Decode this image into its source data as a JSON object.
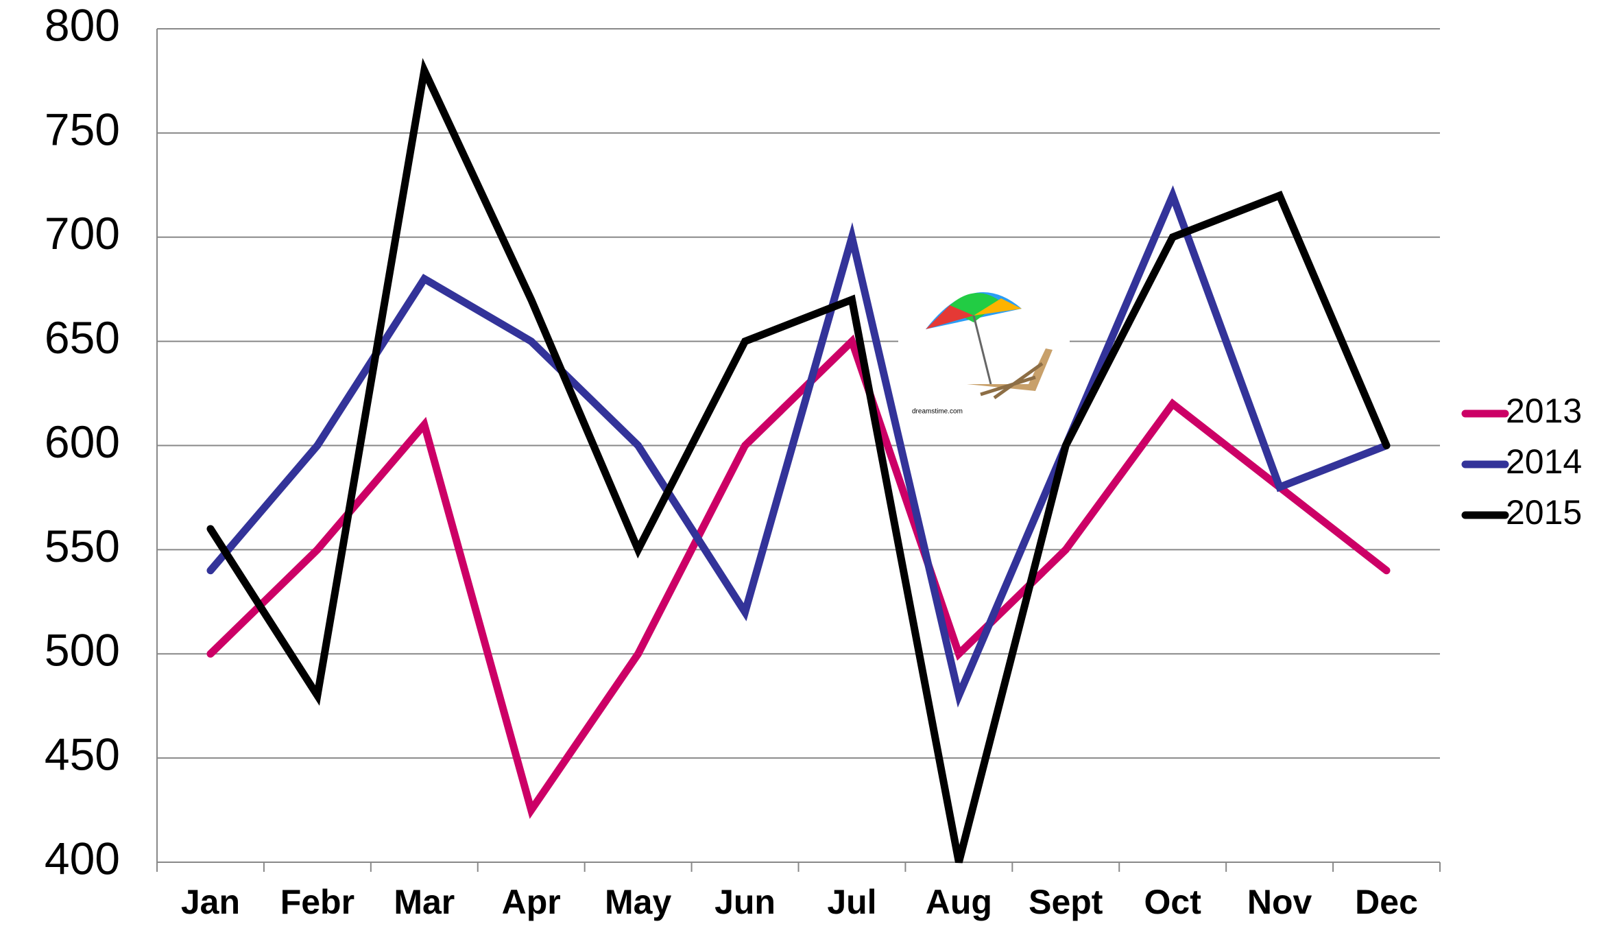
{
  "chart_data": {
    "type": "line",
    "categories": [
      "Jan",
      "Febr",
      "Mar",
      "Apr",
      "May",
      "Jun",
      "Jul",
      "Aug",
      "Sept",
      "Oct",
      "Nov",
      "Dec"
    ],
    "series": [
      {
        "name": "2013",
        "color": "#cc0066",
        "values": [
          500,
          550,
          610,
          425,
          500,
          600,
          650,
          500,
          550,
          620,
          580,
          540
        ]
      },
      {
        "name": "2014",
        "color": "#333399",
        "values": [
          540,
          600,
          680,
          650,
          600,
          520,
          700,
          480,
          600,
          720,
          580,
          600
        ]
      },
      {
        "name": "2015",
        "color": "#000000",
        "values": [
          560,
          480,
          780,
          670,
          550,
          650,
          670,
          400,
          600,
          700,
          720,
          600
        ]
      }
    ],
    "ylim": [
      400,
      800
    ],
    "yticks": [
      400,
      450,
      500,
      550,
      600,
      650,
      700,
      750,
      800
    ],
    "grid": true,
    "legend": "right"
  }
}
